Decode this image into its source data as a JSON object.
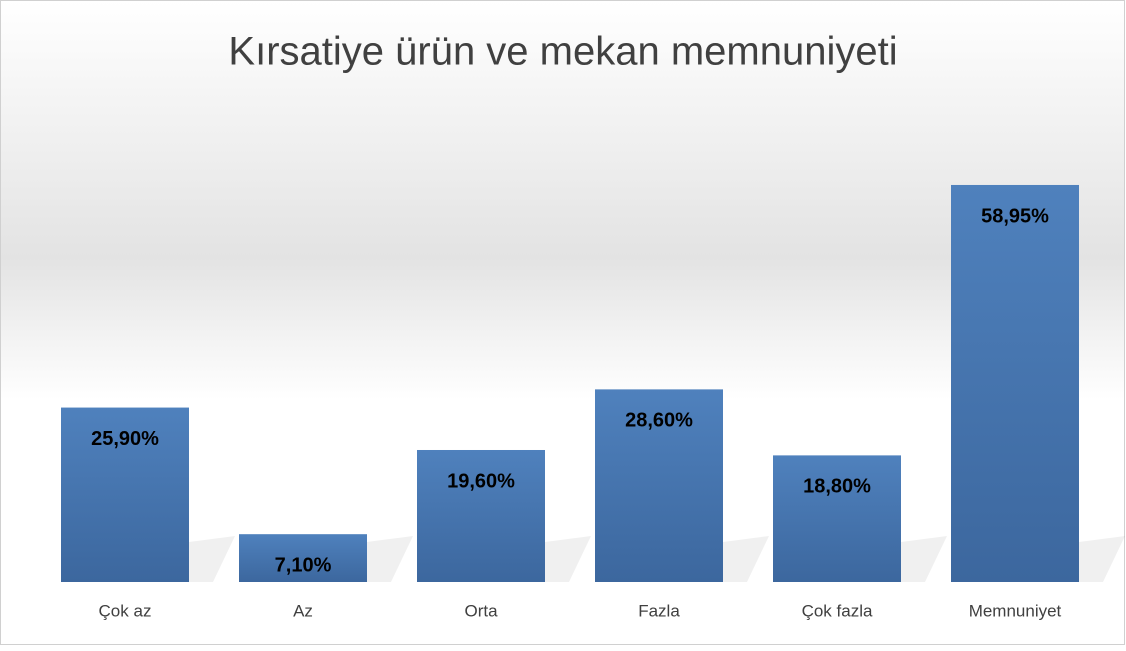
{
  "chart_data": {
    "type": "bar",
    "title": "Kırsatiye ürün ve mekan memnuniyeti",
    "categories": [
      "Çok az",
      "Az",
      "Orta",
      "Fazla",
      "Çok fazla",
      "Memnuniyet"
    ],
    "values": [
      25.9,
      7.1,
      19.6,
      28.6,
      18.8,
      58.95
    ],
    "value_labels": [
      "25,90%",
      "7,10%",
      "19,60%",
      "28,60%",
      "18,80%",
      "58,95%"
    ],
    "color": "#4a7ebb"
  }
}
